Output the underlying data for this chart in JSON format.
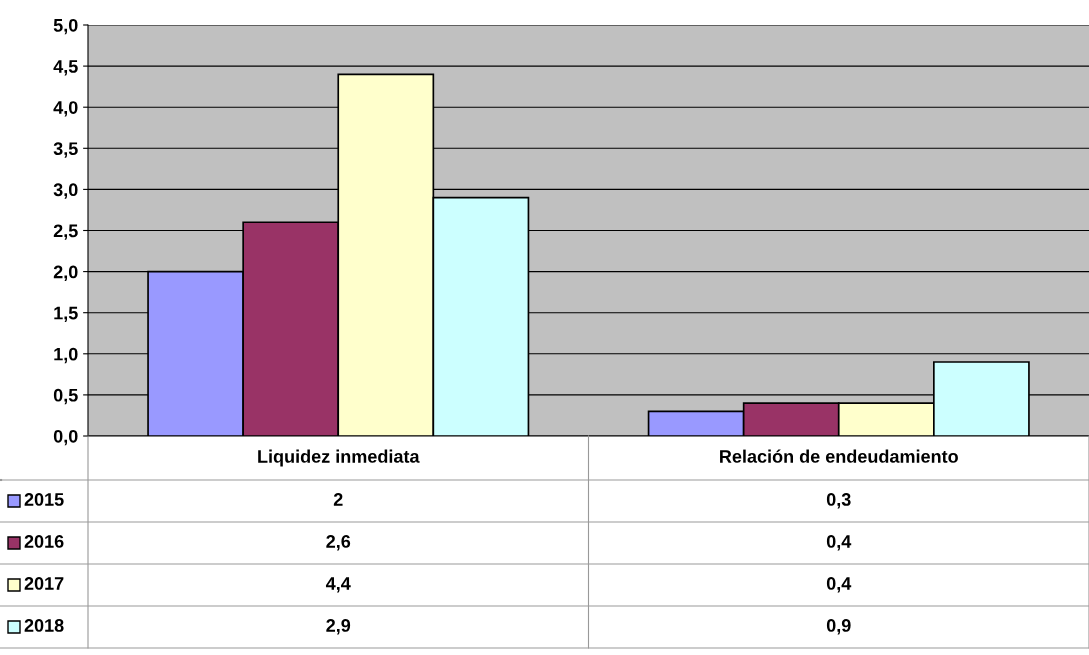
{
  "chart_data": {
    "type": "bar",
    "categories": [
      "Liquidez inmediata",
      "Relación de endeudamiento"
    ],
    "series": [
      {
        "name": "2015",
        "color": "#9999ff",
        "values": [
          2,
          0.3
        ],
        "value_labels": [
          "2",
          "0,3"
        ]
      },
      {
        "name": "2016",
        "color": "#993366",
        "values": [
          2.6,
          0.4
        ],
        "value_labels": [
          "2,6",
          "0,4"
        ]
      },
      {
        "name": "2017",
        "color": "#ffffcc",
        "values": [
          4.4,
          0.4
        ],
        "value_labels": [
          "4,4",
          "0,4"
        ]
      },
      {
        "name": "2018",
        "color": "#ccffff",
        "values": [
          2.9,
          0.9
        ],
        "value_labels": [
          "2,9",
          "0,9"
        ]
      }
    ],
    "ylim": [
      0,
      5
    ],
    "yticks": [
      {
        "value": 0,
        "label": "0,0"
      },
      {
        "value": 0.5,
        "label": "0,5"
      },
      {
        "value": 1,
        "label": "1,0"
      },
      {
        "value": 1.5,
        "label": "1,5"
      },
      {
        "value": 2,
        "label": "2,0"
      },
      {
        "value": 2.5,
        "label": "2,5"
      },
      {
        "value": 3,
        "label": "3,0"
      },
      {
        "value": 3.5,
        "label": "3,5"
      },
      {
        "value": 4,
        "label": "4,0"
      },
      {
        "value": 4.5,
        "label": "4,5"
      },
      {
        "value": 5,
        "label": "5,0"
      }
    ],
    "grid": "y",
    "legend": "bottom left"
  }
}
